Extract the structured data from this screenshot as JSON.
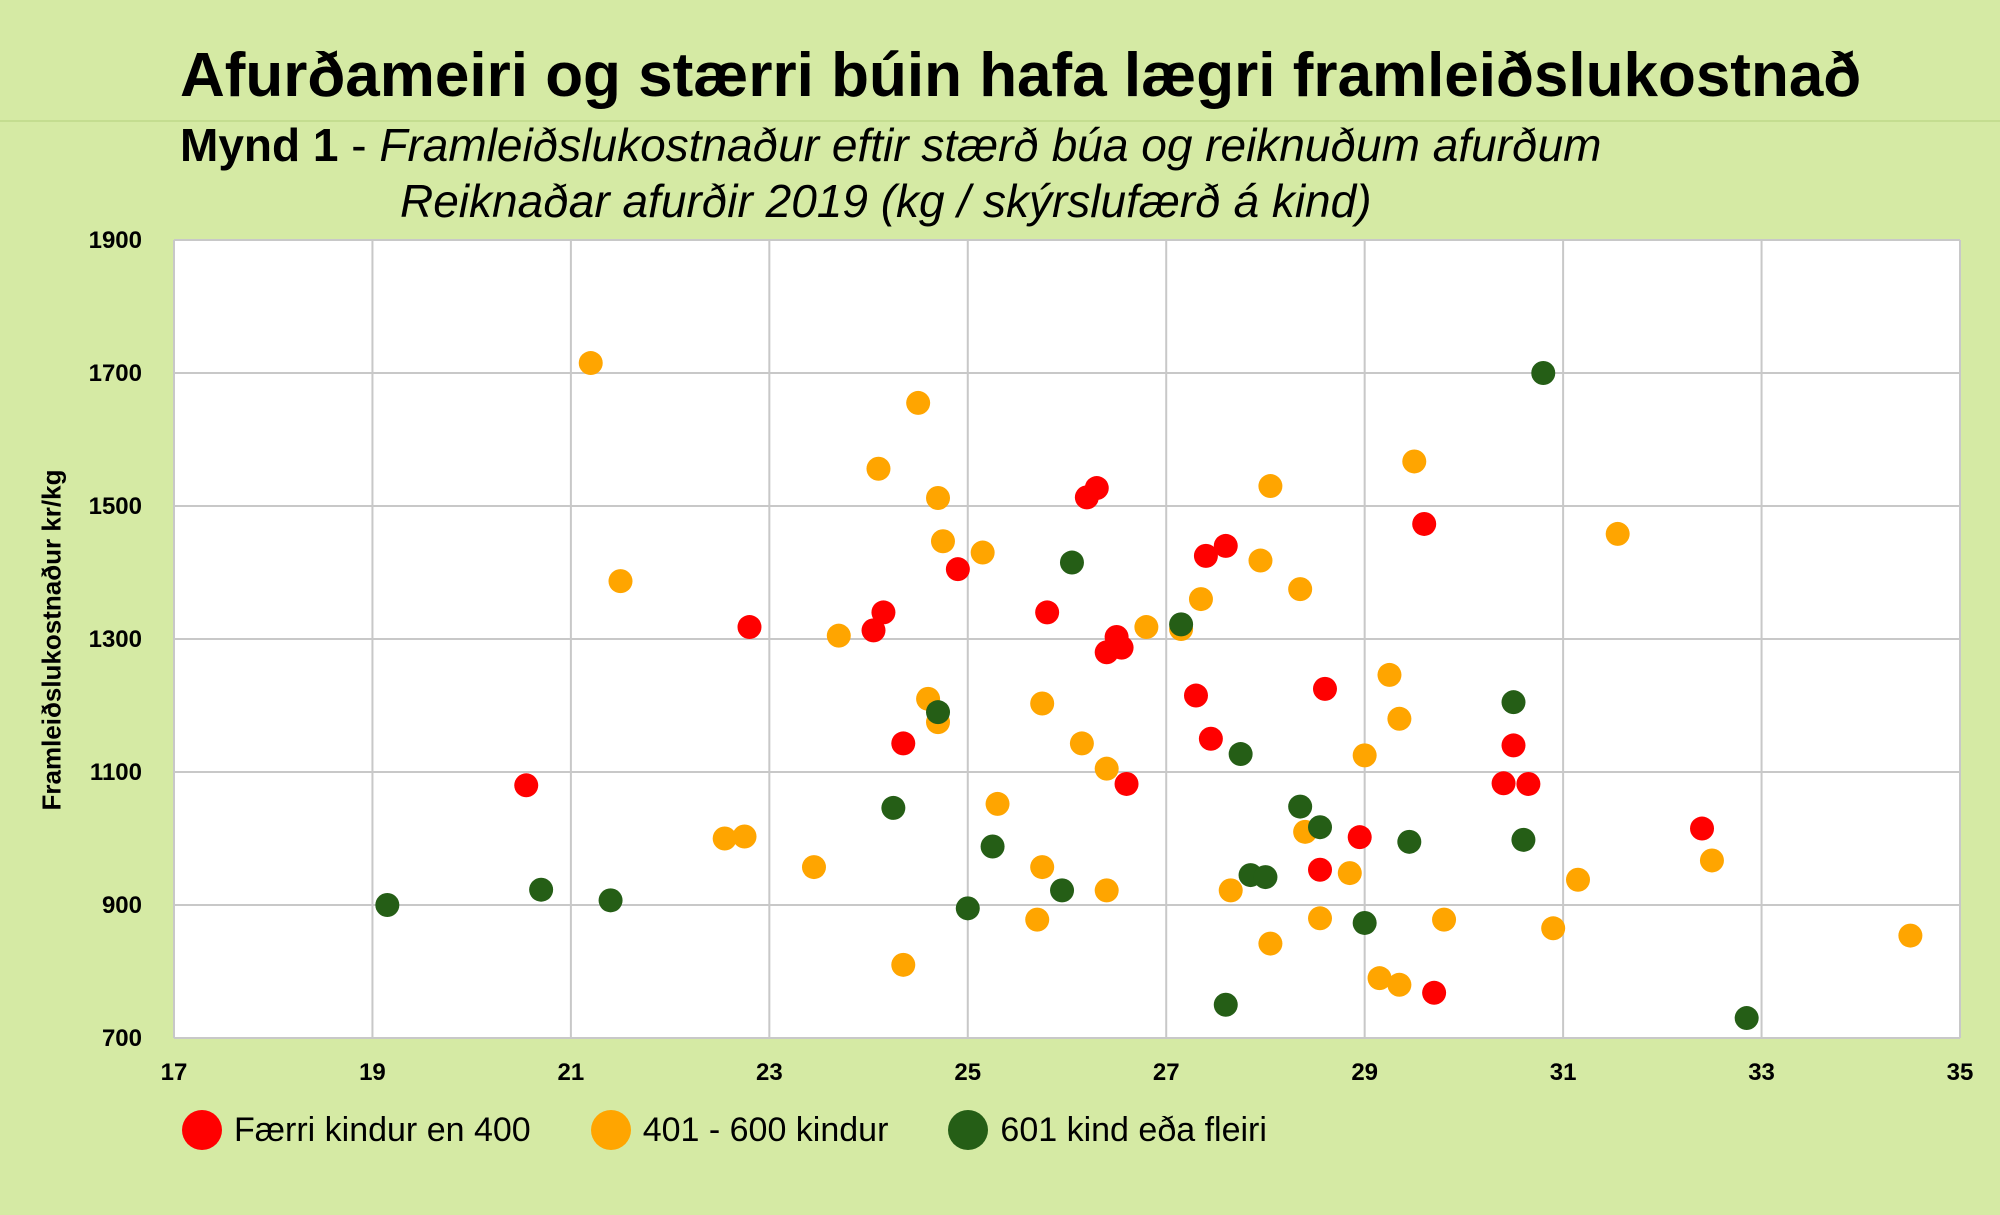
{
  "chart_data": {
    "type": "scatter",
    "title": "Afurðameiri og stærri búin hafa lægri framleiðslukostnað",
    "subtitle_lead": "Mynd 1",
    "subtitle_sep": " - ",
    "subtitle": "Framleiðslukostnaður eftir stærð búa og reiknuðum afurðum",
    "xlabel": "Reiknaðar afurðir 2019 (kg / skýrslufærð á kind)",
    "ylabel": "Framleiðslukostnaður  kr/kg",
    "xlim": [
      17,
      35
    ],
    "ylim": [
      700,
      1900
    ],
    "xticks": [
      "17",
      "19",
      "21",
      "23",
      "25",
      "27",
      "29",
      "31",
      "33",
      "35"
    ],
    "yticks": [
      "1900",
      "1700",
      "1500",
      "1300",
      "1100",
      "900",
      "700"
    ],
    "grid": true,
    "legend_position": "bottom-left",
    "series": [
      {
        "name": "Færri kindur en 400",
        "color": "#ff0000",
        "points": [
          [
            20.55,
            1080
          ],
          [
            22.8,
            1318
          ],
          [
            24.05,
            1313
          ],
          [
            24.15,
            1340
          ],
          [
            24.35,
            1143
          ],
          [
            24.9,
            1405
          ],
          [
            25.8,
            1340
          ],
          [
            26.2,
            1513
          ],
          [
            26.3,
            1527
          ],
          [
            26.4,
            1280
          ],
          [
            26.5,
            1303
          ],
          [
            26.55,
            1287
          ],
          [
            26.6,
            1082
          ],
          [
            27.3,
            1215
          ],
          [
            27.4,
            1425
          ],
          [
            27.45,
            1150
          ],
          [
            27.6,
            1440
          ],
          [
            28.55,
            953
          ],
          [
            28.6,
            1225
          ],
          [
            28.95,
            1002
          ],
          [
            29.6,
            1473
          ],
          [
            29.7,
            768
          ],
          [
            30.4,
            1083
          ],
          [
            30.5,
            1140
          ],
          [
            30.65,
            1082
          ],
          [
            32.4,
            1015
          ]
        ]
      },
      {
        "name": "401 - 600 kindur",
        "color": "#ffa500",
        "points": [
          [
            21.2,
            1715
          ],
          [
            21.5,
            1387
          ],
          [
            22.55,
            1000
          ],
          [
            22.75,
            1003
          ],
          [
            23.45,
            957
          ],
          [
            23.7,
            1305
          ],
          [
            24.1,
            1556
          ],
          [
            24.35,
            810
          ],
          [
            24.5,
            1655
          ],
          [
            24.6,
            1210
          ],
          [
            24.7,
            1175
          ],
          [
            24.7,
            1512
          ],
          [
            24.75,
            1447
          ],
          [
            25.15,
            1430
          ],
          [
            25.3,
            1052
          ],
          [
            25.7,
            878
          ],
          [
            25.75,
            957
          ],
          [
            25.75,
            1203
          ],
          [
            26.15,
            1143
          ],
          [
            26.4,
            1105
          ],
          [
            26.4,
            922
          ],
          [
            26.8,
            1318
          ],
          [
            27.15,
            1315
          ],
          [
            27.35,
            1360
          ],
          [
            27.65,
            922
          ],
          [
            27.95,
            1418
          ],
          [
            28.05,
            1530
          ],
          [
            28.05,
            842
          ],
          [
            28.35,
            1375
          ],
          [
            28.4,
            1010
          ],
          [
            28.55,
            880
          ],
          [
            28.85,
            948
          ],
          [
            29.0,
            1125
          ],
          [
            29.15,
            790
          ],
          [
            29.25,
            1246
          ],
          [
            29.35,
            1180
          ],
          [
            29.35,
            780
          ],
          [
            29.5,
            1567
          ],
          [
            29.8,
            878
          ],
          [
            30.9,
            865
          ],
          [
            31.15,
            938
          ],
          [
            31.55,
            1458
          ],
          [
            32.5,
            967
          ],
          [
            34.5,
            854
          ]
        ]
      },
      {
        "name": "601 kind eða fleiri",
        "color": "#255e16",
        "points": [
          [
            19.15,
            900
          ],
          [
            20.7,
            923
          ],
          [
            21.4,
            907
          ],
          [
            24.25,
            1046
          ],
          [
            24.7,
            1190
          ],
          [
            25.0,
            895
          ],
          [
            25.25,
            988
          ],
          [
            25.95,
            922
          ],
          [
            26.05,
            1415
          ],
          [
            27.15,
            1322
          ],
          [
            27.6,
            750
          ],
          [
            27.75,
            1127
          ],
          [
            27.85,
            945
          ],
          [
            28.0,
            942
          ],
          [
            28.35,
            1048
          ],
          [
            28.55,
            1017
          ],
          [
            29.0,
            873
          ],
          [
            29.45,
            995
          ],
          [
            30.5,
            1205
          ],
          [
            30.6,
            998
          ],
          [
            30.8,
            1700
          ],
          [
            32.85,
            730
          ]
        ]
      }
    ]
  }
}
